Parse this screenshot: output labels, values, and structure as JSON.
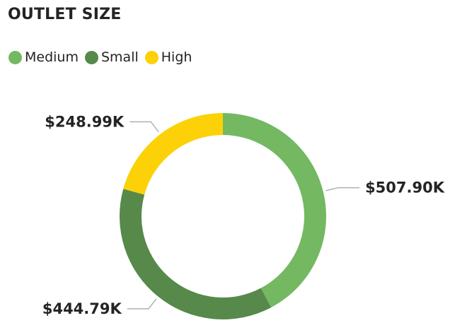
{
  "chart_data": {
    "type": "pie",
    "title": "OUTLET SIZE",
    "categories": [
      "Medium",
      "Small",
      "High"
    ],
    "values": [
      507.9,
      444.79,
      248.99
    ],
    "data_labels": [
      "$507.90K",
      "$444.79K",
      "$248.99K"
    ],
    "colors": [
      "#74b862",
      "#56894a",
      "#fcd107"
    ],
    "legend_position": "top-left",
    "donut": true
  }
}
